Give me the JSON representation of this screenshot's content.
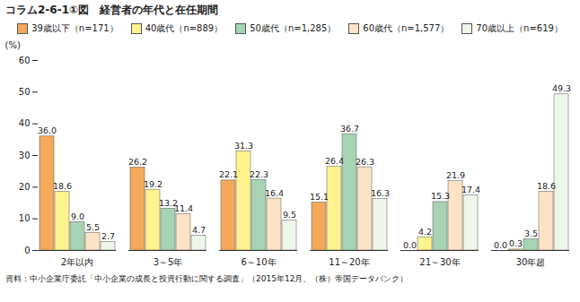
{
  "chart_data": {
    "type": "bar",
    "title": "コラム2-6-1①図　経営者の年代と在任期間",
    "y_label": "(%)",
    "source": "資料：中小企業庁委託「中小企業の成長と投資行動に関する調査」（2015年12月、（株）帝国データバンク）",
    "categories": [
      "2年以内",
      "3～5年",
      "6～10年",
      "11～20年",
      "21～30年",
      "30年超"
    ],
    "series": [
      {
        "name": "39歳以下（n=171）",
        "color": "#f4a95b",
        "values": [
          36.0,
          26.2,
          22.1,
          15.1,
          0.0,
          0.0
        ],
        "value_labels": [
          "36.0",
          "26.2",
          "22.1",
          "15.1",
          "0.0",
          "0.0"
        ]
      },
      {
        "name": "40歳代（n=889）",
        "color": "#fff38f",
        "values": [
          18.6,
          19.2,
          31.3,
          26.4,
          4.2,
          0.3
        ],
        "value_labels": [
          "18.6",
          "19.2",
          "31.3",
          "26.4",
          "4.2",
          "0.3"
        ]
      },
      {
        "name": "50歳代（n=1,285）",
        "color": "#a6d4b2",
        "values": [
          9.0,
          13.2,
          22.3,
          36.7,
          15.3,
          3.5
        ],
        "value_labels": [
          "9.0",
          "13.2",
          "22.3",
          "36.7",
          "15.3",
          "3.5"
        ]
      },
      {
        "name": "60歳代（n=1,577）",
        "color": "#fde3c6",
        "values": [
          5.5,
          11.4,
          16.4,
          26.3,
          21.9,
          18.6
        ],
        "value_labels": [
          "5.5",
          "11.4",
          "16.4",
          "26.3",
          "21.9",
          "18.6"
        ]
      },
      {
        "name": "70歳以上（n=619）",
        "color": "#eef6ea",
        "values": [
          2.7,
          4.7,
          9.5,
          16.3,
          17.4,
          49.3
        ],
        "value_labels": [
          "2.7",
          "4.7",
          "9.5",
          "16.3",
          "17.4",
          "49.3"
        ]
      }
    ],
    "ylim": [
      0,
      60
    ],
    "yticks": [
      0,
      10,
      20,
      30,
      40,
      50,
      60
    ],
    "grid": false,
    "legend": "top",
    "data_labels": true
  }
}
